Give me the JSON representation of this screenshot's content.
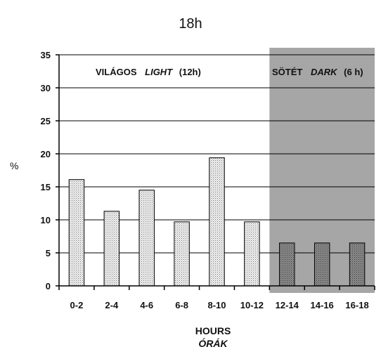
{
  "chart_data": {
    "type": "bar",
    "title": "18h",
    "ylabel": "%",
    "xlabel": "HOURS",
    "xlabel_secondary": "ÓRÁK",
    "ylim": [
      0,
      35
    ],
    "yticks": [
      "0",
      "5",
      "10",
      "15",
      "20",
      "25",
      "30",
      "35"
    ],
    "categories": [
      "0-2",
      "2-4",
      "4-6",
      "6-8",
      "8-10",
      "10-12",
      "12-14",
      "14-16",
      "16-18"
    ],
    "values": [
      16.1,
      11.3,
      14.5,
      9.7,
      19.4,
      9.7,
      6.5,
      6.5,
      6.5
    ],
    "grid": true,
    "regions": [
      {
        "from_category": "0-2",
        "to_category": "10-12",
        "label_hu": "VILÁGOS",
        "label_en": "LIGHT",
        "label_dur": "(12h)",
        "shaded": false,
        "color": "#ffffff"
      },
      {
        "from_category": "12-14",
        "to_category": "16-18",
        "label_hu": "SÖTÉT",
        "label_en": "DARK",
        "label_dur": "(6 h)",
        "shaded": true,
        "color": "#a6a6a6"
      }
    ]
  }
}
